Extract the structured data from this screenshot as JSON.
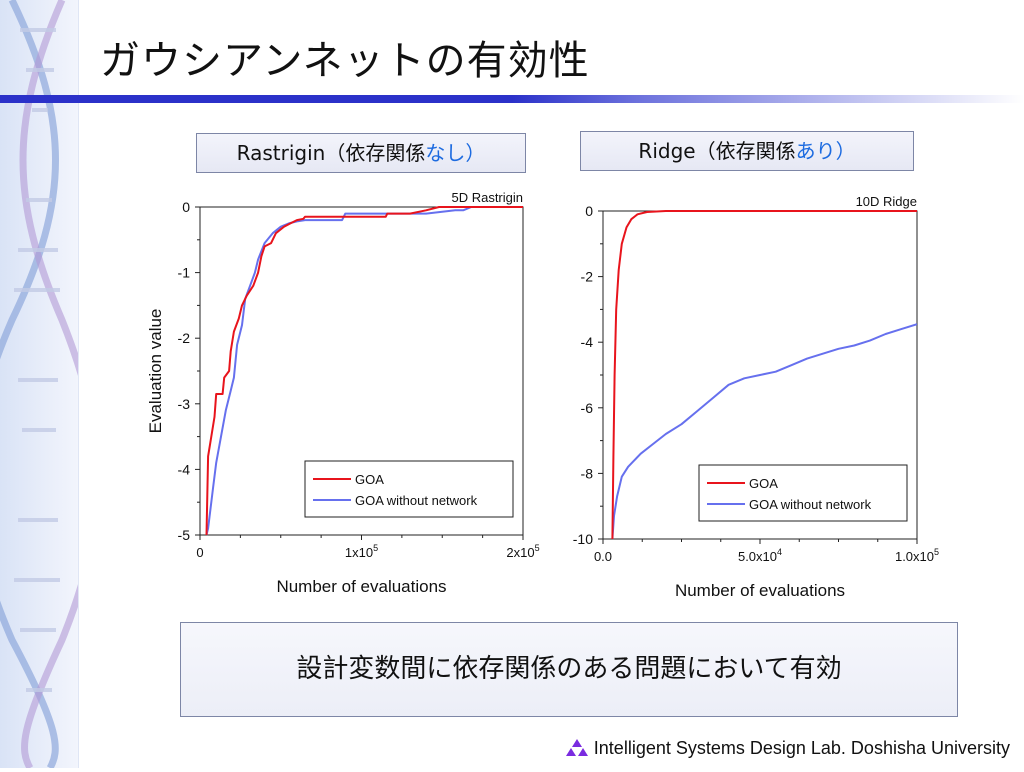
{
  "slide": {
    "title": "ガウシアンネットの有効性",
    "conclusion": "設計変数間に依存関係のある問題において有効",
    "footer": "Intelligent Systems Design Lab. Doshisha University"
  },
  "panels": {
    "left": {
      "label_main": "Rastrigin（依存関係",
      "label_accent": "なし）"
    },
    "right": {
      "label_main": "Ridge（依存関係",
      "label_accent": "あり）"
    }
  },
  "colors": {
    "accent_text": "#1d6be0",
    "title_rule": "#2b31c9",
    "goa": "#e8141c",
    "goa_without_network": "#6670ee",
    "logo": "#7a2be0"
  },
  "chart_data": [
    {
      "type": "line",
      "title": "5D Rastrigin",
      "xlabel": "Number of evaluations",
      "ylabel": "Evaluation value",
      "xlim": [
        0,
        200000
      ],
      "ylim": [
        -5,
        0
      ],
      "xticks": [
        {
          "value": 0,
          "base": "0",
          "exp": ""
        },
        {
          "value": 100000,
          "base": "1x10",
          "exp": "5"
        },
        {
          "value": 200000,
          "base": "2x10",
          "exp": "5"
        }
      ],
      "yticks": [
        {
          "value": 0,
          "label": "0"
        },
        {
          "value": -1,
          "label": "-1"
        },
        {
          "value": -2,
          "label": "-2"
        },
        {
          "value": -3,
          "label": "-3"
        },
        {
          "value": -4,
          "label": "-4"
        },
        {
          "value": -5,
          "label": "-5"
        }
      ],
      "legend_position": "bottom-right",
      "series": [
        {
          "name": "GOA",
          "color": "#e8141c",
          "points": [
            [
              4000,
              -5
            ],
            [
              4500,
              -4.4
            ],
            [
              5000,
              -3.8
            ],
            [
              7000,
              -3.5
            ],
            [
              9000,
              -3.2
            ],
            [
              10000,
              -2.85
            ],
            [
              14000,
              -2.85
            ],
            [
              15000,
              -2.6
            ],
            [
              18000,
              -2.5
            ],
            [
              19000,
              -2.2
            ],
            [
              21000,
              -1.9
            ],
            [
              24000,
              -1.7
            ],
            [
              26000,
              -1.5
            ],
            [
              29000,
              -1.35
            ],
            [
              33000,
              -1.2
            ],
            [
              36000,
              -1.0
            ],
            [
              38000,
              -0.75
            ],
            [
              40000,
              -0.6
            ],
            [
              44000,
              -0.55
            ],
            [
              47000,
              -0.4
            ],
            [
              52000,
              -0.3
            ],
            [
              56000,
              -0.25
            ],
            [
              60000,
              -0.2
            ],
            [
              64000,
              -0.18
            ],
            [
              65000,
              -0.15
            ],
            [
              100000,
              -0.15
            ],
            [
              115000,
              -0.15
            ],
            [
              116000,
              -0.1
            ],
            [
              130000,
              -0.1
            ],
            [
              140000,
              -0.05
            ],
            [
              148000,
              0
            ],
            [
              200000,
              0
            ]
          ]
        },
        {
          "name": "GOA without network",
          "color": "#6670ee",
          "points": [
            [
              4000,
              -5
            ],
            [
              5000,
              -4.9
            ],
            [
              8000,
              -4.3
            ],
            [
              10000,
              -3.9
            ],
            [
              13000,
              -3.5
            ],
            [
              16000,
              -3.1
            ],
            [
              19000,
              -2.8
            ],
            [
              21000,
              -2.6
            ],
            [
              23000,
              -2.1
            ],
            [
              26000,
              -1.8
            ],
            [
              28000,
              -1.4
            ],
            [
              31000,
              -1.2
            ],
            [
              34000,
              -1.0
            ],
            [
              36000,
              -0.8
            ],
            [
              40000,
              -0.55
            ],
            [
              45000,
              -0.4
            ],
            [
              50000,
              -0.3
            ],
            [
              55000,
              -0.25
            ],
            [
              60000,
              -0.22
            ],
            [
              65000,
              -0.2
            ],
            [
              88000,
              -0.2
            ],
            [
              90000,
              -0.1
            ],
            [
              110000,
              -0.1
            ],
            [
              140000,
              -0.1
            ],
            [
              158000,
              -0.05
            ],
            [
              163000,
              -0.05
            ],
            [
              168000,
              0
            ],
            [
              200000,
              0
            ]
          ]
        }
      ]
    },
    {
      "type": "line",
      "title": "10D Ridge",
      "xlabel": "Number of evaluations",
      "ylabel": "",
      "xlim": [
        0,
        100000
      ],
      "ylim": [
        -10,
        0
      ],
      "xticks": [
        {
          "value": 0,
          "base": "0.0",
          "exp": ""
        },
        {
          "value": 50000,
          "base": "5.0x10",
          "exp": "4"
        },
        {
          "value": 100000,
          "base": "1.0x10",
          "exp": "5"
        }
      ],
      "yticks": [
        {
          "value": 0,
          "label": "0"
        },
        {
          "value": -2,
          "label": "-2"
        },
        {
          "value": -4,
          "label": "-4"
        },
        {
          "value": -6,
          "label": "-6"
        },
        {
          "value": -8,
          "label": "-8"
        },
        {
          "value": -10,
          "label": "-10"
        }
      ],
      "legend_position": "bottom-right",
      "series": [
        {
          "name": "GOA",
          "color": "#e8141c",
          "points": [
            [
              3000,
              -10
            ],
            [
              3300,
              -7.5
            ],
            [
              3700,
              -5
            ],
            [
              4200,
              -3
            ],
            [
              5000,
              -1.8
            ],
            [
              6000,
              -1.0
            ],
            [
              7500,
              -0.5
            ],
            [
              9000,
              -0.25
            ],
            [
              11000,
              -0.1
            ],
            [
              14000,
              -0.03
            ],
            [
              20000,
              0
            ],
            [
              100000,
              0
            ]
          ]
        },
        {
          "name": "GOA without network",
          "color": "#6670ee",
          "points": [
            [
              3000,
              -10
            ],
            [
              3500,
              -9.3
            ],
            [
              4500,
              -8.7
            ],
            [
              6000,
              -8.1
            ],
            [
              8000,
              -7.8
            ],
            [
              12000,
              -7.4
            ],
            [
              16000,
              -7.1
            ],
            [
              20000,
              -6.8
            ],
            [
              25000,
              -6.5
            ],
            [
              30000,
              -6.1
            ],
            [
              35000,
              -5.7
            ],
            [
              40000,
              -5.3
            ],
            [
              45000,
              -5.1
            ],
            [
              50000,
              -5.0
            ],
            [
              55000,
              -4.9
            ],
            [
              60000,
              -4.7
            ],
            [
              65000,
              -4.5
            ],
            [
              70000,
              -4.35
            ],
            [
              75000,
              -4.2
            ],
            [
              80000,
              -4.1
            ],
            [
              85000,
              -3.95
            ],
            [
              90000,
              -3.75
            ],
            [
              95000,
              -3.6
            ],
            [
              100000,
              -3.45
            ]
          ]
        }
      ]
    }
  ]
}
